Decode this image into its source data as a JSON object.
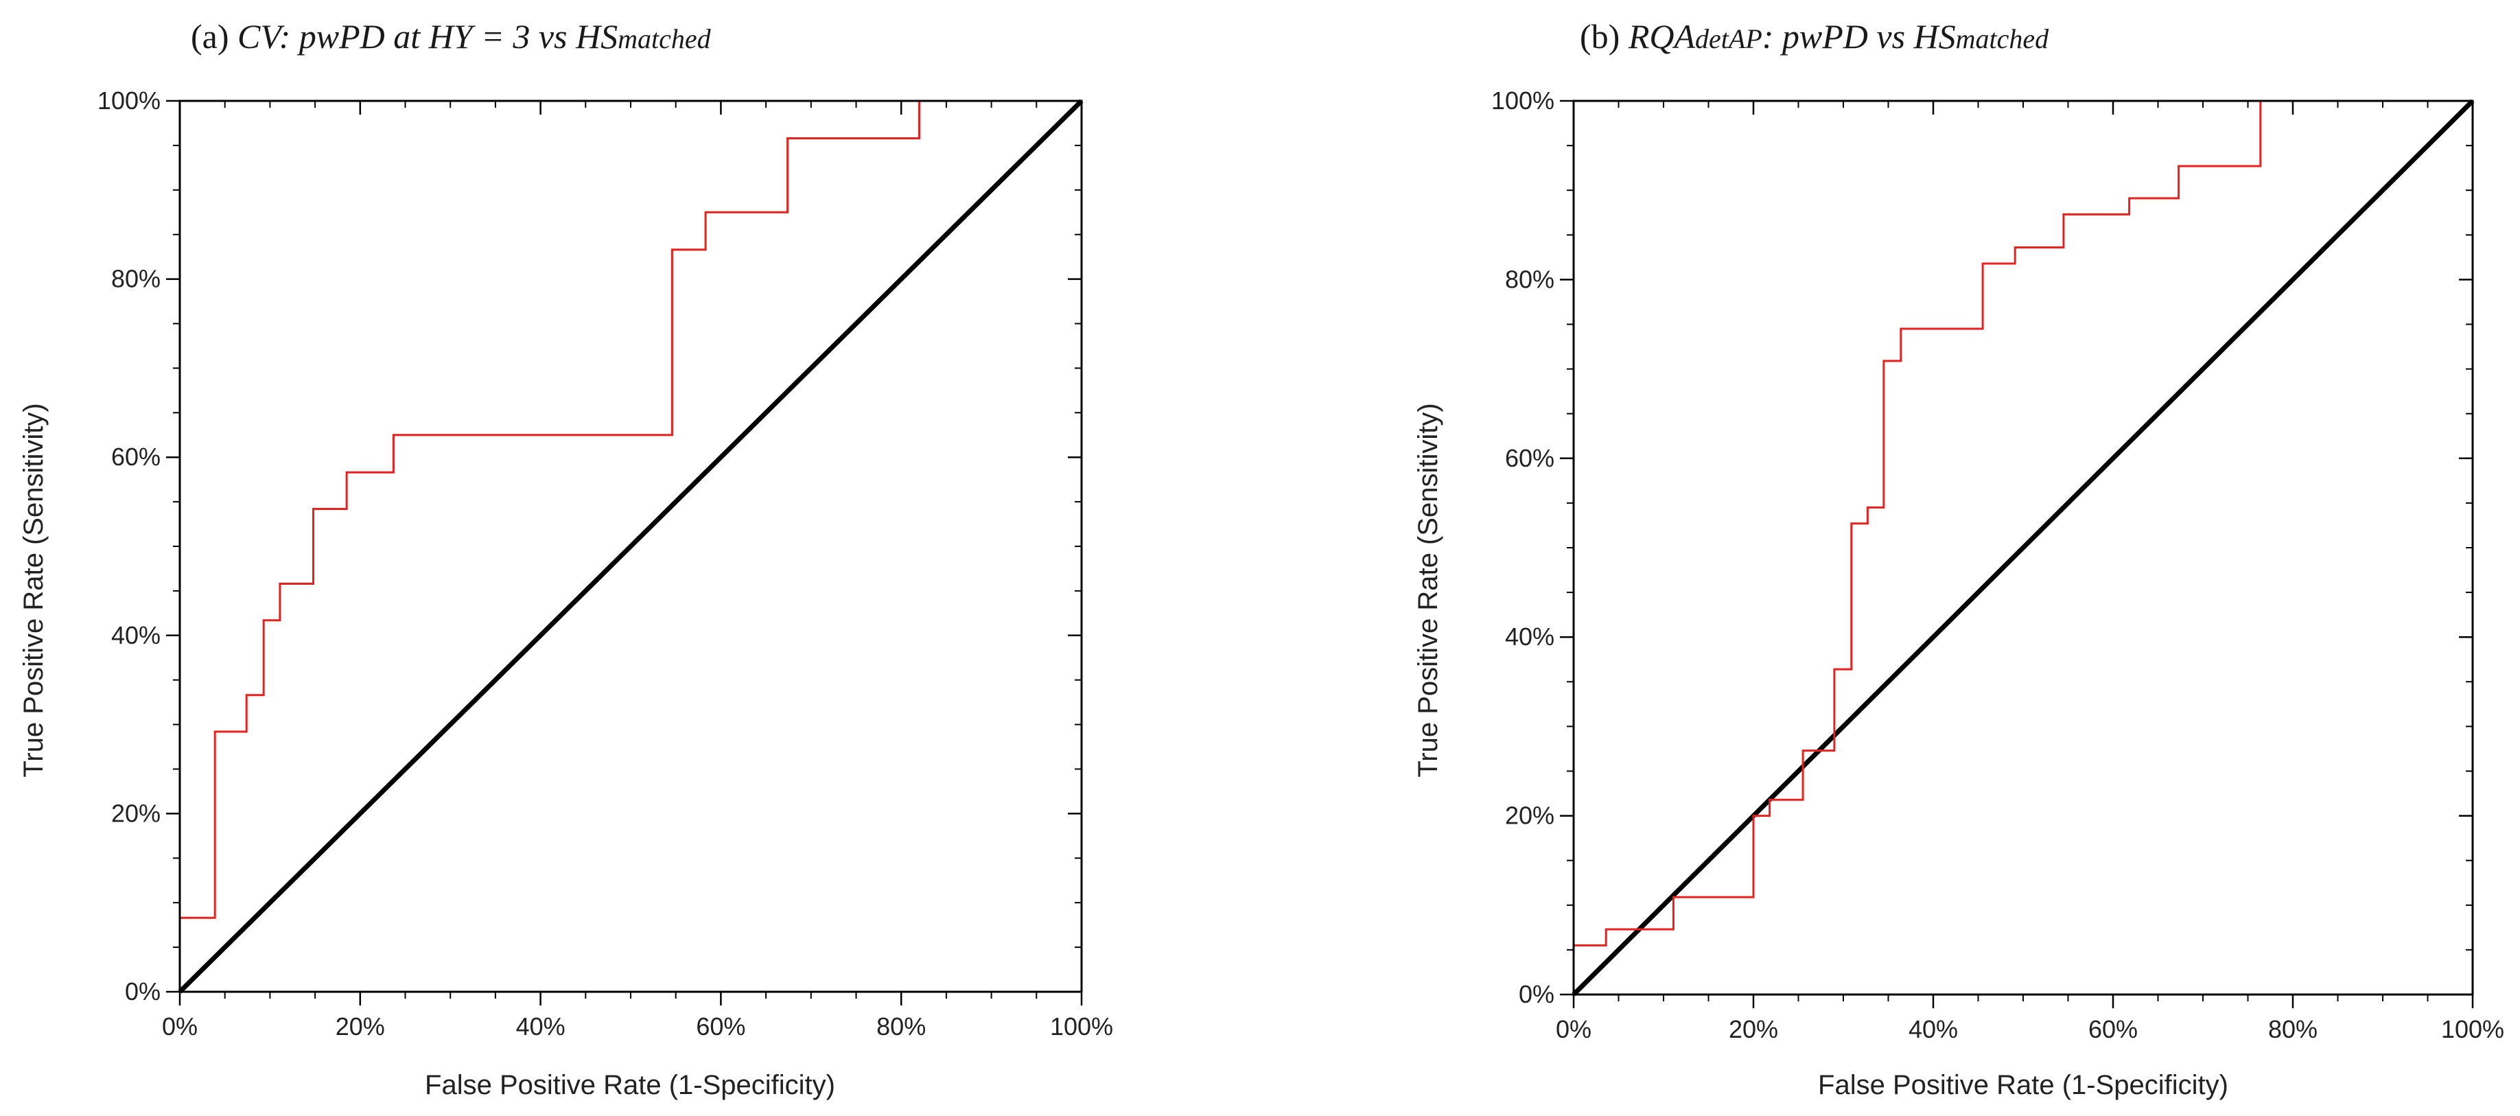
{
  "chart_data": [
    {
      "type": "line",
      "title": {
        "prefix": "(a) ",
        "main_italic": "CV: pwPD at HY = 3 vs HS",
        "sub_italic": "matched"
      },
      "xlabel": "False Positive Rate (1-Specificity)",
      "ylabel": "True Positive Rate (Sensitivity)",
      "xlim": [
        0,
        100
      ],
      "ylim": [
        0,
        100
      ],
      "x_ticks": [
        0,
        20,
        40,
        60,
        80,
        100
      ],
      "y_ticks": [
        0,
        20,
        40,
        60,
        80,
        100
      ],
      "x_tick_labels": [
        "0%",
        "20%",
        "40%",
        "60%",
        "80%",
        "100%"
      ],
      "y_tick_labels": [
        "0%",
        "20%",
        "40%",
        "60%",
        "80%",
        "100%"
      ],
      "colors": {
        "roc": "#e8211f",
        "reference": "#000000"
      },
      "series": [
        {
          "name": "ROC curve",
          "step": true,
          "points": [
            [
              0,
              0
            ],
            [
              0,
              8.3
            ],
            [
              3.9,
              8.3
            ],
            [
              3.9,
              29.2
            ],
            [
              7.4,
              29.2
            ],
            [
              7.4,
              33.3
            ],
            [
              9.3,
              33.3
            ],
            [
              9.3,
              41.7
            ],
            [
              11.1,
              41.7
            ],
            [
              11.1,
              45.8
            ],
            [
              14.8,
              45.8
            ],
            [
              14.8,
              54.2
            ],
            [
              18.5,
              54.2
            ],
            [
              18.5,
              58.3
            ],
            [
              23.7,
              58.3
            ],
            [
              23.7,
              62.5
            ],
            [
              54.6,
              62.5
            ],
            [
              54.6,
              83.3
            ],
            [
              58.3,
              83.3
            ],
            [
              58.3,
              87.5
            ],
            [
              67.4,
              87.5
            ],
            [
              67.4,
              95.8
            ],
            [
              82.0,
              95.8
            ],
            [
              82.0,
              100
            ],
            [
              100,
              100
            ]
          ]
        },
        {
          "name": "Reference line",
          "points": [
            [
              0,
              0
            ],
            [
              100,
              100
            ]
          ]
        }
      ]
    },
    {
      "type": "line",
      "title": {
        "prefix": "(b) ",
        "main_italic": "RQA",
        "sub_italic": "detAP",
        "rest_italic": ": pwPD vs HS",
        "sub2_italic": "matched"
      },
      "xlabel": "False Positive Rate (1-Specificity)",
      "ylabel": "True Positive Rate (Sensitivity)",
      "xlim": [
        0,
        100
      ],
      "ylim": [
        0,
        100
      ],
      "x_ticks": [
        0,
        20,
        40,
        60,
        80,
        100
      ],
      "y_ticks": [
        0,
        20,
        40,
        60,
        80,
        100
      ],
      "x_tick_labels": [
        "0%",
        "20%",
        "40%",
        "60%",
        "80%",
        "100%"
      ],
      "y_tick_labels": [
        "0%",
        "20%",
        "40%",
        "60%",
        "80%",
        "100%"
      ],
      "colors": {
        "roc": "#e8211f",
        "reference": "#000000"
      },
      "series": [
        {
          "name": "ROC curve",
          "step": true,
          "points": [
            [
              0,
              0
            ],
            [
              0,
              5.5
            ],
            [
              3.6,
              5.5
            ],
            [
              3.6,
              7.3
            ],
            [
              11.1,
              7.3
            ],
            [
              11.1,
              10.9
            ],
            [
              20.0,
              10.9
            ],
            [
              20.0,
              20.0
            ],
            [
              21.8,
              20.0
            ],
            [
              21.8,
              21.8
            ],
            [
              25.5,
              21.8
            ],
            [
              25.5,
              27.3
            ],
            [
              29.0,
              27.3
            ],
            [
              29.0,
              36.4
            ],
            [
              30.9,
              36.4
            ],
            [
              30.9,
              52.7
            ],
            [
              32.7,
              52.7
            ],
            [
              32.7,
              54.5
            ],
            [
              34.5,
              54.5
            ],
            [
              34.5,
              70.9
            ],
            [
              36.4,
              70.9
            ],
            [
              36.4,
              74.5
            ],
            [
              45.5,
              74.5
            ],
            [
              45.5,
              81.8
            ],
            [
              49.1,
              81.8
            ],
            [
              49.1,
              83.6
            ],
            [
              54.5,
              83.6
            ],
            [
              54.5,
              87.3
            ],
            [
              61.8,
              87.3
            ],
            [
              61.8,
              89.1
            ],
            [
              67.3,
              89.1
            ],
            [
              67.3,
              92.7
            ],
            [
              76.4,
              92.7
            ],
            [
              76.4,
              100
            ],
            [
              100,
              100
            ]
          ]
        },
        {
          "name": "Reference line",
          "points": [
            [
              0,
              0
            ],
            [
              100,
              100
            ]
          ]
        }
      ]
    }
  ]
}
